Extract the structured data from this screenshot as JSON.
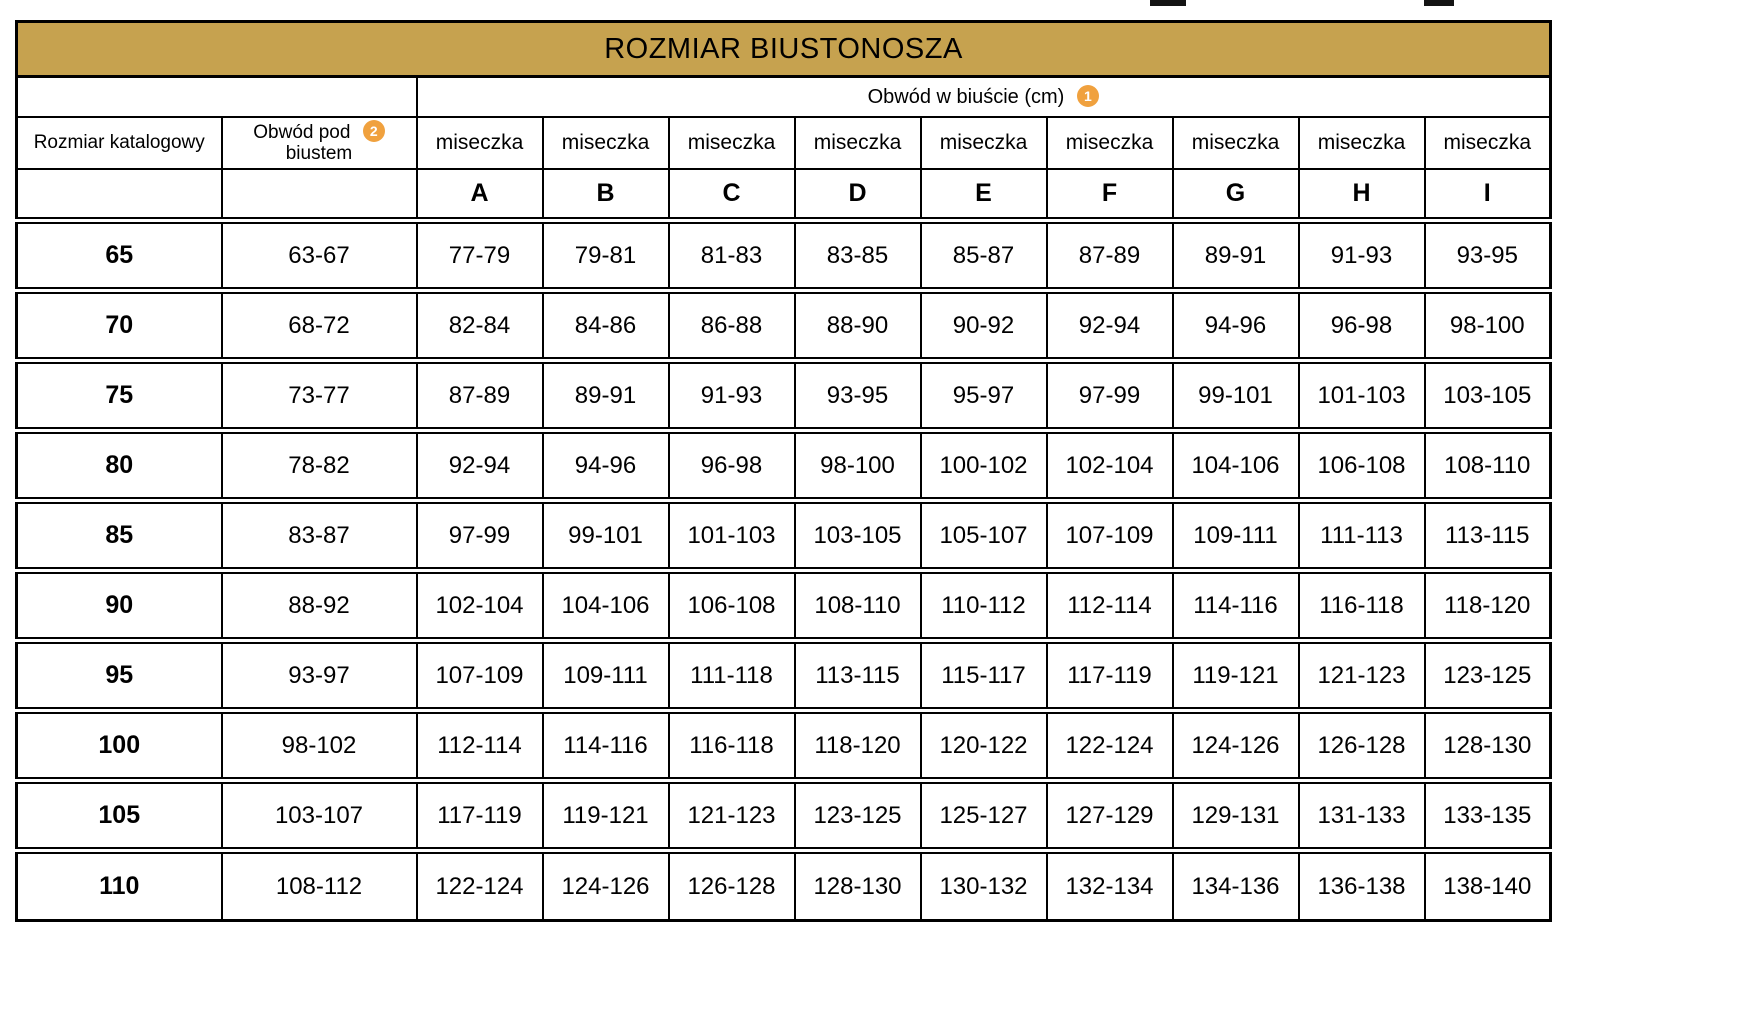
{
  "title": "ROZMIAR BIUSTONOSZA",
  "badges": {
    "one": "1",
    "two": "2"
  },
  "headers": {
    "bust": "Obwód w biuście (cm)",
    "catalog_size": "Rozmiar katalogowy",
    "underbust_line1": "Obwód pod",
    "underbust_line2": "biustem",
    "cup": "miseczka",
    "letters": [
      "A",
      "B",
      "C",
      "D",
      "E",
      "F",
      "G",
      "H",
      "I"
    ]
  },
  "colors": {
    "title_bg": "#c6a24f",
    "badge_bg": "#f0a13e",
    "border": "#000000"
  },
  "chart_data": {
    "type": "table",
    "title": "ROZMIAR BIUSTONOSZA",
    "group_header": "Obwód w biuście (cm)",
    "columns": [
      "Rozmiar katalogowy",
      "Obwód pod biustem",
      "miseczka A",
      "miseczka B",
      "miseczka C",
      "miseczka D",
      "miseczka E",
      "miseczka F",
      "miseczka G",
      "miseczka H",
      "miseczka I"
    ],
    "rows": [
      [
        "65",
        "63-67",
        "77-79",
        "79-81",
        "81-83",
        "83-85",
        "85-87",
        "87-89",
        "89-91",
        "91-93",
        "93-95"
      ],
      [
        "70",
        "68-72",
        "82-84",
        "84-86",
        "86-88",
        "88-90",
        "90-92",
        "92-94",
        "94-96",
        "96-98",
        "98-100"
      ],
      [
        "75",
        "73-77",
        "87-89",
        "89-91",
        "91-93",
        "93-95",
        "95-97",
        "97-99",
        "99-101",
        "101-103",
        "103-105"
      ],
      [
        "80",
        "78-82",
        "92-94",
        "94-96",
        "96-98",
        "98-100",
        "100-102",
        "102-104",
        "104-106",
        "106-108",
        "108-110"
      ],
      [
        "85",
        "83-87",
        "97-99",
        "99-101",
        "101-103",
        "103-105",
        "105-107",
        "107-109",
        "109-111",
        "111-113",
        "113-115"
      ],
      [
        "90",
        "88-92",
        "102-104",
        "104-106",
        "106-108",
        "108-110",
        "110-112",
        "112-114",
        "114-116",
        "116-118",
        "118-120"
      ],
      [
        "95",
        "93-97",
        "107-109",
        "109-111",
        "111-118",
        "113-115",
        "115-117",
        "117-119",
        "119-121",
        "121-123",
        "123-125"
      ],
      [
        "100",
        "98-102",
        "112-114",
        "114-116",
        "116-118",
        "118-120",
        "120-122",
        "122-124",
        "124-126",
        "126-128",
        "128-130"
      ],
      [
        "105",
        "103-107",
        "117-119",
        "119-121",
        "121-123",
        "123-125",
        "125-127",
        "127-129",
        "129-131",
        "131-133",
        "133-135"
      ],
      [
        "110",
        "108-112",
        "122-124",
        "124-126",
        "126-128",
        "128-130",
        "130-132",
        "132-134",
        "134-136",
        "136-138",
        "138-140"
      ]
    ]
  }
}
